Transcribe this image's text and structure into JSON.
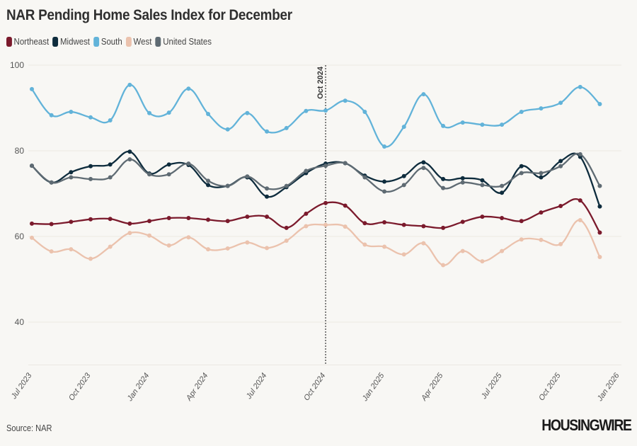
{
  "chart_data": {
    "type": "line",
    "title": "NAR Pending Home Sales Index for December",
    "xlabel": "",
    "ylabel": "",
    "ylim": [
      30,
      100
    ],
    "yticks": [
      40,
      60,
      80,
      100
    ],
    "grid": true,
    "legend_position": "top-left",
    "x_start": "2023-07",
    "x_tick_labels": [
      "Jul 2023",
      "Oct 2023",
      "Jan 2024",
      "Apr 2024",
      "Jul 2024",
      "Oct 2024",
      "Jan 2025",
      "Apr 2025",
      "Jul 2025",
      "Oct 2025",
      "Jan 2026"
    ],
    "x": [
      "2023-07",
      "2023-08",
      "2023-09",
      "2023-10",
      "2023-11",
      "2023-12",
      "2024-01",
      "2024-02",
      "2024-03",
      "2024-04",
      "2024-05",
      "2024-06",
      "2024-07",
      "2024-08",
      "2024-09",
      "2024-10",
      "2024-11",
      "2024-12",
      "2025-01",
      "2025-02",
      "2025-03",
      "2025-04",
      "2025-05",
      "2025-06",
      "2025-07",
      "2025-08",
      "2025-09",
      "2025-10",
      "2025-11",
      "2025-12"
    ],
    "annotation": {
      "label": "Oct 2024",
      "x": "2024-10"
    },
    "series": [
      {
        "name": "Northeast",
        "color": "#7b1a2c",
        "values": [
          63,
          62.9,
          63.4,
          64,
          64.1,
          63,
          63.6,
          64.3,
          64.3,
          63.9,
          63.6,
          64.6,
          64.6,
          62,
          65.3,
          67.8,
          67.2,
          63.1,
          63.3,
          62.7,
          62.4,
          62,
          63.4,
          64.6,
          64.3,
          63.6,
          65.6,
          67.1,
          68.4,
          60.9
        ]
      },
      {
        "name": "Midwest",
        "color": "#0e2c3d",
        "values": [
          76.5,
          72.6,
          75,
          76.4,
          76.8,
          79.8,
          74.7,
          76.8,
          76.7,
          72,
          71.8,
          73.8,
          69.3,
          71.5,
          74.8,
          77,
          77.1,
          74.2,
          72.8,
          74.1,
          77.3,
          73.4,
          73.6,
          73.1,
          70.2,
          76.4,
          73.8,
          77.6,
          78.6,
          67
        ]
      },
      {
        "name": "South",
        "color": "#62b3d9",
        "values": [
          94.4,
          88.3,
          89.1,
          87.8,
          87.1,
          95.4,
          88.8,
          88.9,
          94.5,
          88.6,
          85,
          88.8,
          84.5,
          85.3,
          89.3,
          89.4,
          91.7,
          89.1,
          81,
          85.6,
          93.2,
          85.8,
          86.6,
          86.1,
          86.1,
          89.1,
          89.9,
          91.2,
          94.9,
          90.9
        ]
      },
      {
        "name": "West",
        "color": "#ebc2ad",
        "values": [
          59.7,
          56.5,
          57,
          54.8,
          57.6,
          60.8,
          60.2,
          57.9,
          59.8,
          57,
          57.2,
          58.6,
          57.3,
          59,
          62.4,
          62.7,
          62.3,
          58.1,
          57.6,
          55.8,
          58.4,
          53.3,
          56.6,
          54.2,
          56.6,
          59.3,
          59.2,
          58.2,
          63.8,
          55.2
        ]
      },
      {
        "name": "United States",
        "color": "#5f6b73",
        "values": [
          76.5,
          72.6,
          73.8,
          73.4,
          73.8,
          78,
          74.5,
          74.5,
          77,
          73,
          71.8,
          74,
          71.2,
          71.8,
          75.3,
          76.5,
          77.1,
          73.8,
          70.5,
          72,
          76,
          71.3,
          72.6,
          72,
          71.8,
          74.8,
          74.8,
          76.4,
          79.2,
          71.8
        ]
      }
    ]
  },
  "footer": {
    "source": "Source: NAR",
    "logo": "HOUSINGWIRE"
  }
}
